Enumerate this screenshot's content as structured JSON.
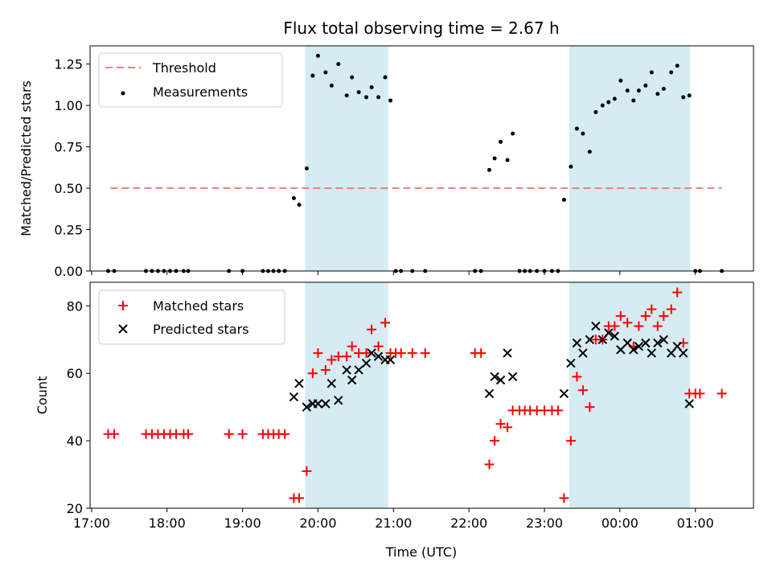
{
  "chart_data": [
    {
      "type": "scatter",
      "title": "Flux total observing time = 2.67 h",
      "xlabel": "",
      "ylabel": "Matched/Predicted stars",
      "ylim": [
        0,
        1.36
      ],
      "yticks": [
        "0.00",
        "0.25",
        "0.50",
        "0.75",
        "1.00",
        "1.25"
      ],
      "ytick_values": [
        0,
        0.25,
        0.5,
        0.75,
        1.0,
        1.25
      ],
      "xlim_hours": [
        16.98,
        25.77
      ],
      "shaded_intervals_hours": [
        [
          19.83,
          20.93
        ],
        [
          23.33,
          24.93
        ]
      ],
      "threshold": {
        "name": "Threshold",
        "y": 0.5,
        "x_range_hours": [
          17.25,
          25.35
        ],
        "color": "#f08080"
      },
      "legend": {
        "position": "upper-left",
        "entries": [
          "Threshold",
          "Measurements"
        ]
      },
      "series": [
        {
          "name": "Measurements",
          "color": "#000000",
          "points": [
            [
              17.22,
              0
            ],
            [
              17.3,
              0
            ],
            [
              17.72,
              0
            ],
            [
              17.8,
              0
            ],
            [
              17.88,
              0
            ],
            [
              17.96,
              0
            ],
            [
              18.04,
              0
            ],
            [
              18.12,
              0
            ],
            [
              18.22,
              0
            ],
            [
              18.28,
              0
            ],
            [
              18.82,
              0
            ],
            [
              19.0,
              0
            ],
            [
              19.27,
              0
            ],
            [
              19.34,
              0
            ],
            [
              19.41,
              0
            ],
            [
              19.48,
              0
            ],
            [
              19.56,
              0
            ],
            [
              19.68,
              0.44
            ],
            [
              19.75,
              0.4
            ],
            [
              19.85,
              0.62
            ],
            [
              19.93,
              1.18
            ],
            [
              20.0,
              1.3
            ],
            [
              20.1,
              1.2
            ],
            [
              20.18,
              1.12
            ],
            [
              20.27,
              1.25
            ],
            [
              20.38,
              1.06
            ],
            [
              20.45,
              1.17
            ],
            [
              20.54,
              1.08
            ],
            [
              20.64,
              1.05
            ],
            [
              20.71,
              1.11
            ],
            [
              20.8,
              1.05
            ],
            [
              20.89,
              1.17
            ],
            [
              20.96,
              1.03
            ],
            [
              21.03,
              0
            ],
            [
              21.1,
              0
            ],
            [
              21.25,
              0
            ],
            [
              21.42,
              0
            ],
            [
              22.08,
              0
            ],
            [
              22.16,
              0
            ],
            [
              22.27,
              0.61
            ],
            [
              22.34,
              0.68
            ],
            [
              22.42,
              0.78
            ],
            [
              22.51,
              0.67
            ],
            [
              22.58,
              0.83
            ],
            [
              22.67,
              0
            ],
            [
              22.74,
              0
            ],
            [
              22.81,
              0
            ],
            [
              22.9,
              0
            ],
            [
              23.0,
              0
            ],
            [
              23.1,
              0
            ],
            [
              23.18,
              0
            ],
            [
              23.26,
              0.43
            ],
            [
              23.35,
              0.63
            ],
            [
              23.43,
              0.86
            ],
            [
              23.51,
              0.83
            ],
            [
              23.6,
              0.72
            ],
            [
              23.68,
              0.96
            ],
            [
              23.77,
              1.0
            ],
            [
              23.85,
              1.02
            ],
            [
              23.93,
              1.04
            ],
            [
              24.01,
              1.15
            ],
            [
              24.1,
              1.09
            ],
            [
              24.18,
              1.03
            ],
            [
              24.25,
              1.09
            ],
            [
              24.34,
              1.12
            ],
            [
              24.42,
              1.2
            ],
            [
              24.5,
              1.07
            ],
            [
              24.58,
              1.1
            ],
            [
              24.68,
              1.2
            ],
            [
              24.76,
              1.24
            ],
            [
              24.84,
              1.05
            ],
            [
              24.92,
              1.06
            ],
            [
              25.0,
              0
            ],
            [
              25.06,
              0
            ],
            [
              25.35,
              0
            ]
          ]
        }
      ]
    },
    {
      "type": "scatter",
      "title": "",
      "xlabel": "Time (UTC)",
      "ylabel": "Count",
      "ylim": [
        20,
        87
      ],
      "yticks": [
        "20",
        "40",
        "60",
        "80"
      ],
      "ytick_values": [
        20,
        40,
        60,
        80
      ],
      "xlim_hours": [
        16.98,
        25.77
      ],
      "xticks": [
        "17:00",
        "18:00",
        "19:00",
        "20:00",
        "21:00",
        "22:00",
        "23:00",
        "00:00",
        "01:00"
      ],
      "xtick_values_hours": [
        17,
        18,
        19,
        20,
        21,
        22,
        23,
        24,
        25
      ],
      "shaded_intervals_hours": [
        [
          19.83,
          20.93
        ],
        [
          23.33,
          24.93
        ]
      ],
      "legend": {
        "position": "upper-left",
        "entries": [
          "Matched stars",
          "Predicted stars"
        ]
      },
      "series": [
        {
          "name": "Matched stars",
          "marker": "+",
          "color": "#ff0000",
          "points": [
            [
              17.22,
              42
            ],
            [
              17.3,
              42
            ],
            [
              17.72,
              42
            ],
            [
              17.8,
              42
            ],
            [
              17.88,
              42
            ],
            [
              17.96,
              42
            ],
            [
              18.04,
              42
            ],
            [
              18.12,
              42
            ],
            [
              18.22,
              42
            ],
            [
              18.28,
              42
            ],
            [
              18.82,
              42
            ],
            [
              19.0,
              42
            ],
            [
              19.27,
              42
            ],
            [
              19.34,
              42
            ],
            [
              19.41,
              42
            ],
            [
              19.48,
              42
            ],
            [
              19.56,
              42
            ],
            [
              19.68,
              23
            ],
            [
              19.75,
              23
            ],
            [
              19.85,
              31
            ],
            [
              19.93,
              60
            ],
            [
              20.0,
              66
            ],
            [
              20.1,
              61
            ],
            [
              20.18,
              64
            ],
            [
              20.27,
              65
            ],
            [
              20.38,
              65
            ],
            [
              20.45,
              68
            ],
            [
              20.54,
              66
            ],
            [
              20.64,
              66
            ],
            [
              20.71,
              73
            ],
            [
              20.8,
              68
            ],
            [
              20.89,
              75
            ],
            [
              20.96,
              66
            ],
            [
              21.03,
              66
            ],
            [
              21.1,
              66
            ],
            [
              21.25,
              66
            ],
            [
              21.42,
              66
            ],
            [
              22.08,
              66
            ],
            [
              22.16,
              66
            ],
            [
              22.27,
              33
            ],
            [
              22.34,
              40
            ],
            [
              22.42,
              45
            ],
            [
              22.51,
              44
            ],
            [
              22.58,
              49
            ],
            [
              22.67,
              49
            ],
            [
              22.74,
              49
            ],
            [
              22.81,
              49
            ],
            [
              22.9,
              49
            ],
            [
              23.0,
              49
            ],
            [
              23.1,
              49
            ],
            [
              23.18,
              49
            ],
            [
              23.26,
              23
            ],
            [
              23.35,
              40
            ],
            [
              23.43,
              59
            ],
            [
              23.51,
              55
            ],
            [
              23.6,
              50
            ],
            [
              23.68,
              70
            ],
            [
              23.77,
              70
            ],
            [
              23.85,
              74
            ],
            [
              23.93,
              74
            ],
            [
              24.01,
              77
            ],
            [
              24.1,
              75
            ],
            [
              24.18,
              68
            ],
            [
              24.25,
              74
            ],
            [
              24.34,
              77
            ],
            [
              24.42,
              79
            ],
            [
              24.5,
              74
            ],
            [
              24.58,
              77
            ],
            [
              24.68,
              79
            ],
            [
              24.76,
              84
            ],
            [
              24.84,
              69
            ],
            [
              24.92,
              54
            ],
            [
              25.0,
              54
            ],
            [
              25.06,
              54
            ],
            [
              25.35,
              54
            ]
          ]
        },
        {
          "name": "Predicted stars",
          "marker": "x",
          "color": "#000000",
          "points": [
            [
              19.68,
              53
            ],
            [
              19.75,
              57
            ],
            [
              19.85,
              50
            ],
            [
              19.93,
              51
            ],
            [
              20.0,
              51
            ],
            [
              20.1,
              51
            ],
            [
              20.18,
              57
            ],
            [
              20.27,
              52
            ],
            [
              20.38,
              61
            ],
            [
              20.45,
              58
            ],
            [
              20.54,
              61
            ],
            [
              20.64,
              63
            ],
            [
              20.71,
              66
            ],
            [
              20.8,
              65
            ],
            [
              20.89,
              64
            ],
            [
              20.96,
              64
            ],
            [
              22.27,
              54
            ],
            [
              22.34,
              59
            ],
            [
              22.42,
              58
            ],
            [
              22.51,
              66
            ],
            [
              22.58,
              59
            ],
            [
              23.26,
              54
            ],
            [
              23.35,
              63
            ],
            [
              23.43,
              69
            ],
            [
              23.51,
              66
            ],
            [
              23.6,
              70
            ],
            [
              23.68,
              74
            ],
            [
              23.77,
              70
            ],
            [
              23.85,
              72
            ],
            [
              23.93,
              71
            ],
            [
              24.01,
              67
            ],
            [
              24.1,
              69
            ],
            [
              24.18,
              67
            ],
            [
              24.25,
              68
            ],
            [
              24.34,
              69
            ],
            [
              24.42,
              66
            ],
            [
              24.5,
              69
            ],
            [
              24.58,
              70
            ],
            [
              24.68,
              66
            ],
            [
              24.76,
              68
            ],
            [
              24.84,
              66
            ],
            [
              24.92,
              51
            ]
          ]
        }
      ]
    }
  ]
}
